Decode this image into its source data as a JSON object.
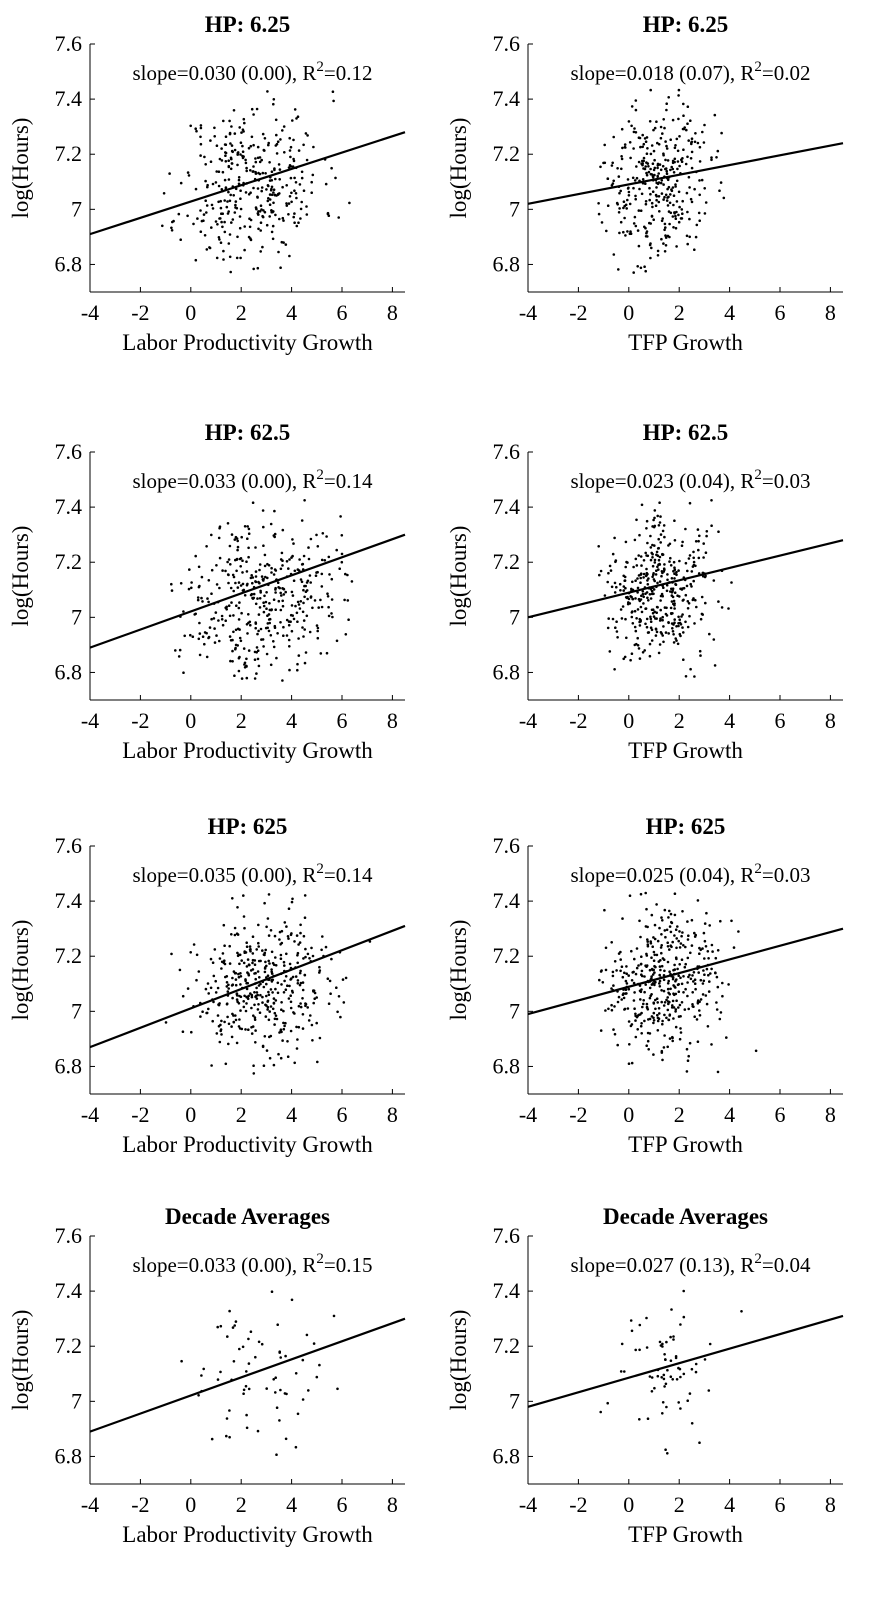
{
  "chart_data": [
    {
      "type": "scatter",
      "title": "HP: 6.25",
      "xlabel": "Labor Productivity Growth",
      "ylabel": "log(Hours)",
      "xlim": [
        -4,
        8.5
      ],
      "ylim": [
        6.7,
        7.6
      ],
      "xticks": [
        "-4",
        "-2",
        "0",
        "2",
        "4",
        "6",
        "8"
      ],
      "yticks": [
        "6.8",
        "7",
        "7.2",
        "7.4",
        "7.6"
      ],
      "annotation": {
        "prefix": "slope=0.030 (0.00), R",
        "sup": "2",
        "suffix": "=0.12"
      },
      "fit_line": {
        "x": [
          -4,
          8.5
        ],
        "y": [
          6.91,
          7.28
        ]
      },
      "points": {
        "seed": 11,
        "count": 380,
        "x_mean": 2.4,
        "x_sd": 1.4,
        "y_mean": 7.09,
        "y_sd": 0.15
      }
    },
    {
      "type": "scatter",
      "title": "HP: 6.25",
      "xlabel": "TFP Growth",
      "ylabel": "log(Hours)",
      "xlim": [
        -4,
        8.5
      ],
      "ylim": [
        6.7,
        7.6
      ],
      "xticks": [
        "-4",
        "-2",
        "0",
        "2",
        "4",
        "6",
        "8"
      ],
      "yticks": [
        "6.8",
        "7",
        "7.2",
        "7.4",
        "7.6"
      ],
      "annotation": {
        "prefix": "slope=0.018 (0.07), R",
        "sup": "2",
        "suffix": "=0.02"
      },
      "fit_line": {
        "x": [
          -4,
          8.5
        ],
        "y": [
          7.02,
          7.24
        ]
      },
      "points": {
        "seed": 23,
        "count": 380,
        "x_mean": 1.0,
        "x_sd": 1.1,
        "y_mean": 7.09,
        "y_sd": 0.15
      }
    },
    {
      "type": "scatter",
      "title": "HP: 62.5",
      "xlabel": "Labor Productivity Growth",
      "ylabel": "log(Hours)",
      "xlim": [
        -4,
        8.5
      ],
      "ylim": [
        6.7,
        7.6
      ],
      "xticks": [
        "-4",
        "-2",
        "0",
        "2",
        "4",
        "6",
        "8"
      ],
      "yticks": [
        "6.8",
        "7",
        "7.2",
        "7.4",
        "7.6"
      ],
      "annotation": {
        "prefix": "slope=0.033 (0.00), R",
        "sup": "2",
        "suffix": "=0.14"
      },
      "fit_line": {
        "x": [
          -4,
          8.5
        ],
        "y": [
          6.89,
          7.3
        ]
      },
      "points": {
        "seed": 37,
        "count": 420,
        "x_mean": 2.8,
        "x_sd": 1.5,
        "y_mean": 7.08,
        "y_sd": 0.14
      }
    },
    {
      "type": "scatter",
      "title": "HP: 62.5",
      "xlabel": "TFP Growth",
      "ylabel": "log(Hours)",
      "xlim": [
        -4,
        8.5
      ],
      "ylim": [
        6.7,
        7.6
      ],
      "xticks": [
        "-4",
        "-2",
        "0",
        "2",
        "4",
        "6",
        "8"
      ],
      "yticks": [
        "6.8",
        "7",
        "7.2",
        "7.4",
        "7.6"
      ],
      "annotation": {
        "prefix": "slope=0.023 (0.04), R",
        "sup": "2",
        "suffix": "=0.03"
      },
      "fit_line": {
        "x": [
          -4,
          8.5
        ],
        "y": [
          7.0,
          7.28
        ]
      },
      "points": {
        "seed": 41,
        "count": 420,
        "x_mean": 1.2,
        "x_sd": 1.1,
        "y_mean": 7.1,
        "y_sd": 0.13
      }
    },
    {
      "type": "scatter",
      "title": "HP: 625",
      "xlabel": "Labor Productivity Growth",
      "ylabel": "log(Hours)",
      "xlim": [
        -4,
        8.5
      ],
      "ylim": [
        6.7,
        7.6
      ],
      "xticks": [
        "-4",
        "-2",
        "0",
        "2",
        "4",
        "6",
        "8"
      ],
      "yticks": [
        "6.8",
        "7",
        "7.2",
        "7.4",
        "7.6"
      ],
      "annotation": {
        "prefix": "slope=0.035 (0.00), R",
        "sup": "2",
        "suffix": "=0.14"
      },
      "fit_line": {
        "x": [
          -4,
          8.5
        ],
        "y": [
          6.87,
          7.31
        ]
      },
      "points": {
        "seed": 53,
        "count": 440,
        "x_mean": 3.0,
        "x_sd": 1.5,
        "y_mean": 7.08,
        "y_sd": 0.14
      }
    },
    {
      "type": "scatter",
      "title": "HP: 625",
      "xlabel": "TFP Growth",
      "ylabel": "log(Hours)",
      "xlim": [
        -4,
        8.5
      ],
      "ylim": [
        6.7,
        7.6
      ],
      "xticks": [
        "-4",
        "-2",
        "0",
        "2",
        "4",
        "6",
        "8"
      ],
      "yticks": [
        "6.8",
        "7",
        "7.2",
        "7.4",
        "7.6"
      ],
      "annotation": {
        "prefix": "slope=0.025 (0.04), R",
        "sup": "2",
        "suffix": "=0.03"
      },
      "fit_line": {
        "x": [
          -4,
          8.5
        ],
        "y": [
          6.99,
          7.3
        ]
      },
      "points": {
        "seed": 67,
        "count": 440,
        "x_mean": 1.3,
        "x_sd": 1.1,
        "y_mean": 7.09,
        "y_sd": 0.13
      }
    },
    {
      "type": "scatter",
      "title": "Decade Averages",
      "xlabel": "Labor Productivity Growth",
      "ylabel": "log(Hours)",
      "xlim": [
        -4,
        8.5
      ],
      "ylim": [
        6.7,
        7.6
      ],
      "xticks": [
        "-4",
        "-2",
        "0",
        "2",
        "4",
        "6",
        "8"
      ],
      "yticks": [
        "6.8",
        "7",
        "7.2",
        "7.4",
        "7.6"
      ],
      "annotation": {
        "prefix": "slope=0.033 (0.00), R",
        "sup": "2",
        "suffix": "=0.15"
      },
      "fit_line": {
        "x": [
          -4,
          8.5
        ],
        "y": [
          6.89,
          7.3
        ]
      },
      "points": {
        "seed": 79,
        "count": 70,
        "x_mean": 2.6,
        "x_sd": 1.5,
        "y_mean": 7.1,
        "y_sd": 0.14
      }
    },
    {
      "type": "scatter",
      "title": "Decade Averages",
      "xlabel": "TFP Growth",
      "ylabel": "log(Hours)",
      "xlim": [
        -4,
        8.5
      ],
      "ylim": [
        6.7,
        7.6
      ],
      "xticks": [
        "-4",
        "-2",
        "0",
        "2",
        "4",
        "6",
        "8"
      ],
      "yticks": [
        "6.8",
        "7",
        "7.2",
        "7.4",
        "7.6"
      ],
      "annotation": {
        "prefix": "slope=0.027 (0.13), R",
        "sup": "2",
        "suffix": "=0.04"
      },
      "fit_line": {
        "x": [
          -4,
          8.5
        ],
        "y": [
          6.98,
          7.31
        ]
      },
      "points": {
        "seed": 97,
        "count": 70,
        "x_mean": 1.1,
        "x_sd": 1.1,
        "y_mean": 7.1,
        "y_sd": 0.14
      }
    }
  ]
}
